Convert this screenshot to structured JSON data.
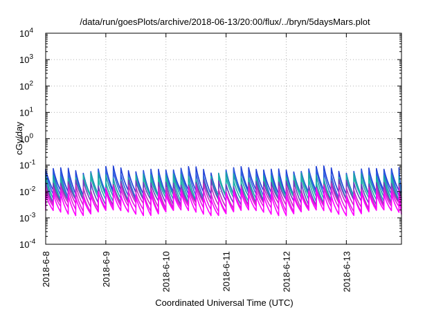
{
  "chart_data": {
    "type": "line",
    "title": "/data/run/goesPlots/archive/2018-06-13/20:00/flux/../bryn/5daysMars.plot",
    "xlabel": "Coordinated Universal Time (UTC)",
    "ylabel": "cGy/day",
    "yscale": "log",
    "ylim": [
      0.0001,
      10000
    ],
    "xlim": [
      "2018-06-08T00:00",
      "2018-06-13T22:00"
    ],
    "grid": true,
    "legend": "none",
    "x_ticks": [
      "2018-6-8",
      "2018-6-9",
      "2018-6-10",
      "2018-6-11",
      "2018-6-12",
      "2018-6-13"
    ],
    "y_ticks": [
      {
        "value": 0.0001,
        "base": "10",
        "exp": "-4"
      },
      {
        "value": 0.001,
        "base": "10",
        "exp": "-3"
      },
      {
        "value": 0.01,
        "base": "10",
        "exp": "-2"
      },
      {
        "value": 0.1,
        "base": "10",
        "exp": "-1"
      },
      {
        "value": 1,
        "base": "10",
        "exp": "0"
      },
      {
        "value": 10,
        "base": "10",
        "exp": "1"
      },
      {
        "value": 100,
        "base": "10",
        "exp": "2"
      },
      {
        "value": 1000,
        "base": "10",
        "exp": "3"
      },
      {
        "value": 10000,
        "base": "10",
        "exp": "4"
      }
    ],
    "cycle_hours": 3,
    "series": [
      {
        "color": "#1f3fd6",
        "peak": 0.07,
        "trough": 0.009
      },
      {
        "color": "#2f5fe0",
        "peak": 0.055,
        "trough": 0.007
      },
      {
        "color": "#1aa0a8",
        "peak": 0.04,
        "trough": 0.006
      },
      {
        "color": "#20b2aa",
        "peak": 0.03,
        "trough": 0.005
      },
      {
        "color": "#6a3fc0",
        "peak": 0.022,
        "trough": 0.004
      },
      {
        "color": "#c030c0",
        "peak": 0.015,
        "trough": 0.003
      },
      {
        "color": "#e020e0",
        "peak": 0.011,
        "trough": 0.0022
      },
      {
        "color": "#ff00ff",
        "peak": 0.008,
        "trough": 0.0016
      }
    ]
  }
}
